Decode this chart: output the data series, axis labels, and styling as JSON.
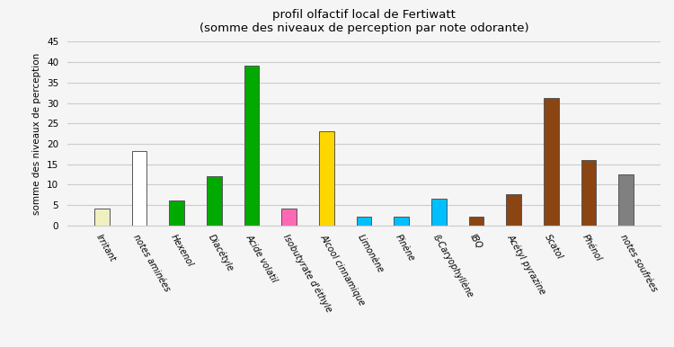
{
  "categories": [
    "Irritant",
    "notes aminées",
    "Hexenol",
    "Diacétyle",
    "Acide volatil",
    "Isobutyrate d'éthyle",
    "Alcool cinnamique",
    "Limonène",
    "Pinène",
    "ß-Caryophyllène",
    "IBQ",
    "Acétyl pyrazine",
    "Scatol",
    "Phénol",
    "notes soufrées"
  ],
  "values": [
    4.2,
    18.2,
    6.2,
    12.0,
    39.2,
    4.2,
    23.0,
    2.1,
    2.1,
    6.5,
    2.1,
    7.6,
    31.2,
    16.0,
    12.5
  ],
  "bar_colors": [
    "#f0f0c0",
    "#ffffff",
    "#00aa00",
    "#00aa00",
    "#00aa00",
    "#ff69b4",
    "#ffd700",
    "#00bfff",
    "#00bfff",
    "#00bfff",
    "#8b4513",
    "#8b4513",
    "#8b4513",
    "#8b4513",
    "#808080"
  ],
  "bar_edgecolors": [
    "#555555",
    "#555555",
    "#555555",
    "#555555",
    "#555555",
    "#555555",
    "#555555",
    "#555555",
    "#555555",
    "#555555",
    "#555555",
    "#555555",
    "#555555",
    "#555555",
    "#555555"
  ],
  "title_line1": "profil olfactif local de Fertiwatt",
  "title_line2": "(somme des niveaux de perception par note odorante)",
  "ylabel": "somme des niveaux de perception",
  "ylim": [
    0,
    45
  ],
  "yticks": [
    0,
    5,
    10,
    15,
    20,
    25,
    30,
    35,
    40,
    45
  ],
  "background_color": "#f5f5f5",
  "grid_color": "#cccccc",
  "bar_width": 0.4,
  "label_rotation": -60,
  "title_fontsize": 9.5,
  "ylabel_fontsize": 7.5,
  "tick_fontsize": 7.5,
  "label_fontsize": 7.0
}
